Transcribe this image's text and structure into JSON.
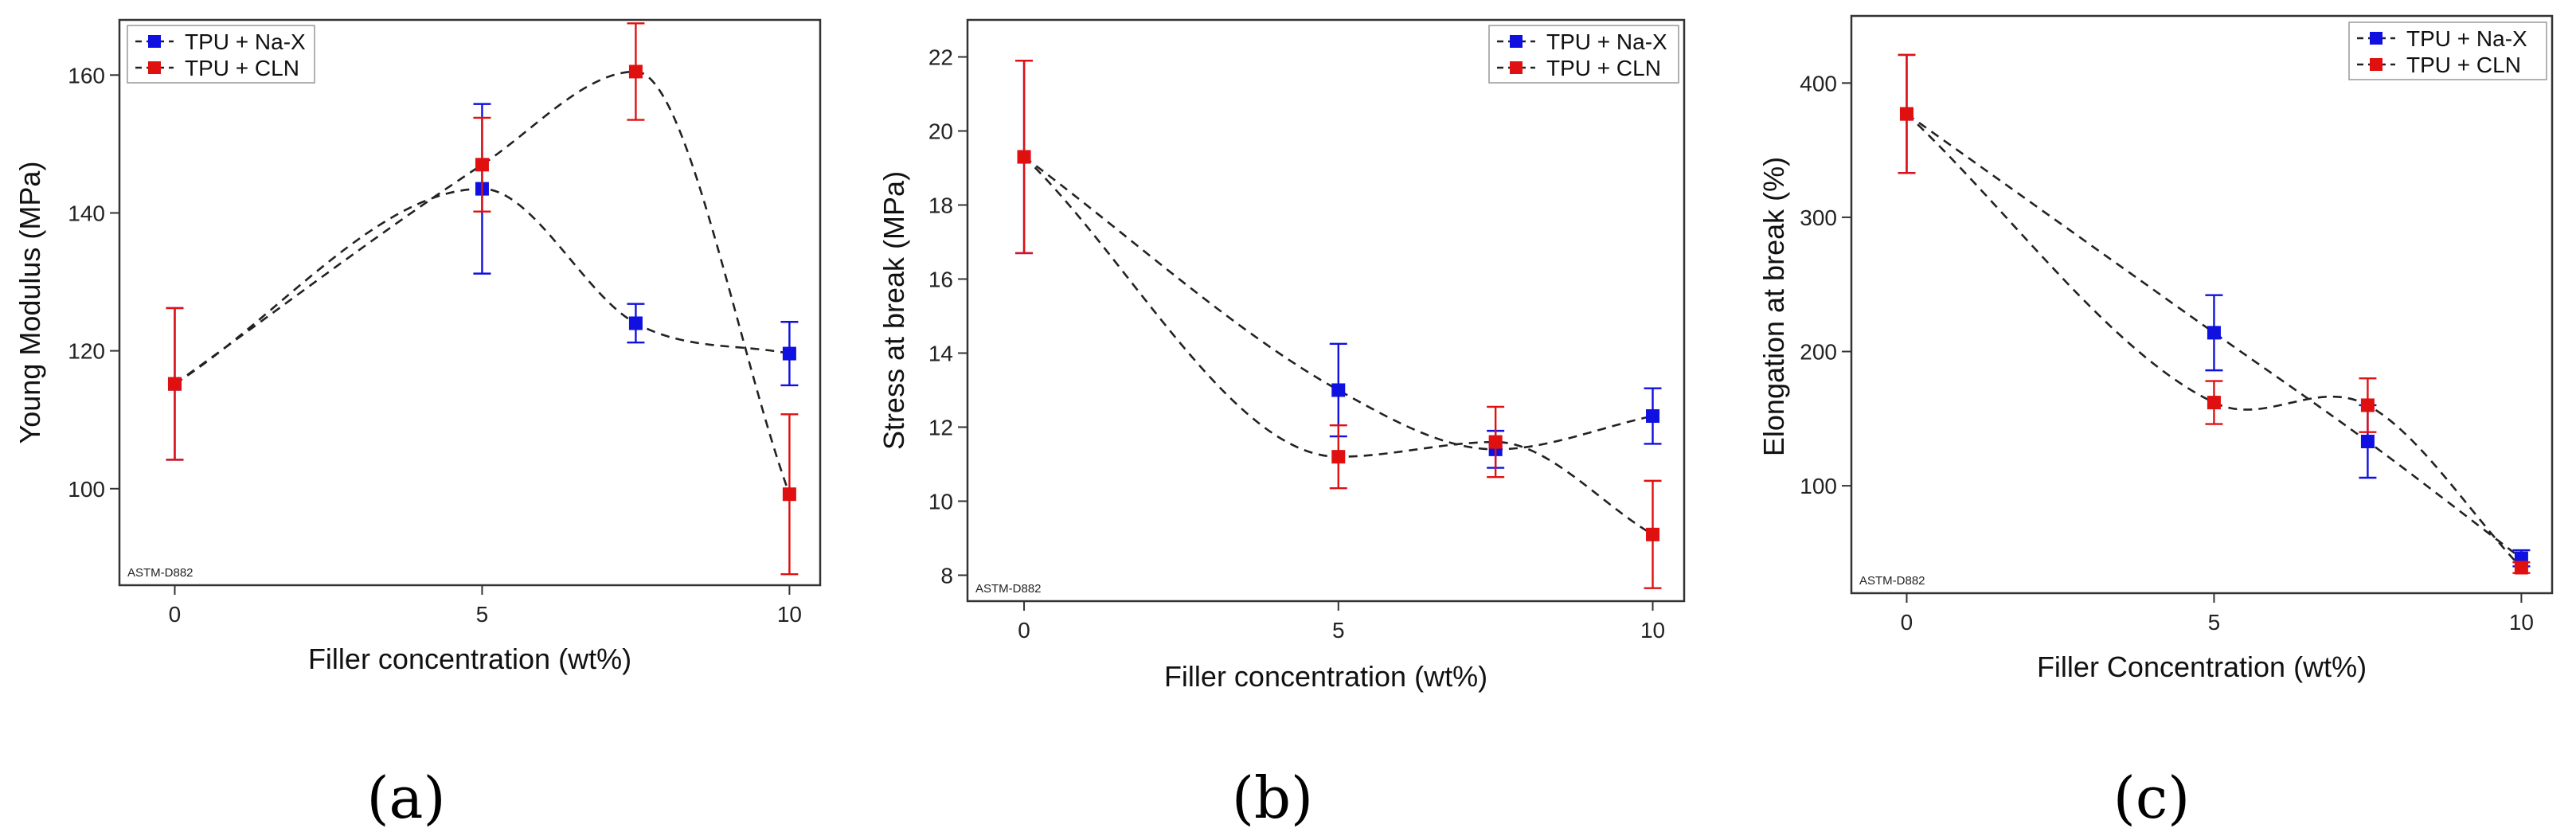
{
  "chart_data": [
    {
      "type": "line",
      "panel": "(a)",
      "xlabel": "Filler concentration (wt%)",
      "ylabel": "Young Modulus (MPa)",
      "xlim": [
        -0.9,
        10.5
      ],
      "ylim": [
        86,
        168
      ],
      "xticks": [
        0,
        5,
        10
      ],
      "yticks": [
        100,
        120,
        140,
        160
      ],
      "x": [
        0,
        5,
        7.5,
        10
      ],
      "note": "ASTM-D882",
      "legend_position": "top-left",
      "series": [
        {
          "name": "TPU + Na-X",
          "color": "#1010e0",
          "values": [
            115.2,
            143.5,
            124.0,
            119.6
          ],
          "errors": [
            11.0,
            12.3,
            2.8,
            4.6
          ]
        },
        {
          "name": "TPU + CLN",
          "color": "#e01010",
          "values": [
            115.2,
            147.0,
            160.5,
            99.2
          ],
          "errors": [
            11.0,
            6.8,
            7.0,
            11.6
          ]
        }
      ]
    },
    {
      "type": "line",
      "panel": "(b)",
      "xlabel": "Filler concentration (wt%)",
      "ylabel": "Stress at break (MPa)",
      "xlim": [
        -0.9,
        10.5
      ],
      "ylim": [
        7.3,
        23.0
      ],
      "xticks": [
        0,
        5,
        10
      ],
      "yticks": [
        8,
        10,
        12,
        14,
        16,
        18,
        20,
        22
      ],
      "x": [
        0,
        5,
        7.5,
        10
      ],
      "note": "ASTM-D882",
      "legend_position": "top-right",
      "series": [
        {
          "name": "TPU + Na-X",
          "color": "#1010e0",
          "values": [
            19.3,
            13.0,
            11.4,
            12.3
          ],
          "errors": [
            2.6,
            1.25,
            0.5,
            0.75
          ]
        },
        {
          "name": "TPU + CLN",
          "color": "#e01010",
          "values": [
            19.3,
            11.2,
            11.6,
            9.1
          ],
          "errors": [
            2.6,
            0.85,
            0.95,
            1.45
          ]
        }
      ]
    },
    {
      "type": "line",
      "panel": "(c)",
      "xlabel": "Filler Concentration (wt%)",
      "ylabel": "Elongation at break (%)",
      "xlim": [
        -0.9,
        10.5
      ],
      "ylim": [
        20,
        450
      ],
      "xticks": [
        0,
        5,
        10
      ],
      "yticks": [
        100,
        200,
        300,
        400
      ],
      "x": [
        0,
        5,
        7.5,
        10
      ],
      "note": "ASTM-D882",
      "legend_position": "top-right",
      "series": [
        {
          "name": "TPU + Na-X",
          "color": "#1010e0",
          "values": [
            377,
            214,
            133,
            46
          ],
          "errors": [
            44,
            28,
            27,
            6
          ]
        },
        {
          "name": "TPU + CLN",
          "color": "#e01010",
          "values": [
            377,
            162,
            160,
            39
          ],
          "errors": [
            44,
            16,
            20,
            4
          ]
        }
      ]
    }
  ]
}
